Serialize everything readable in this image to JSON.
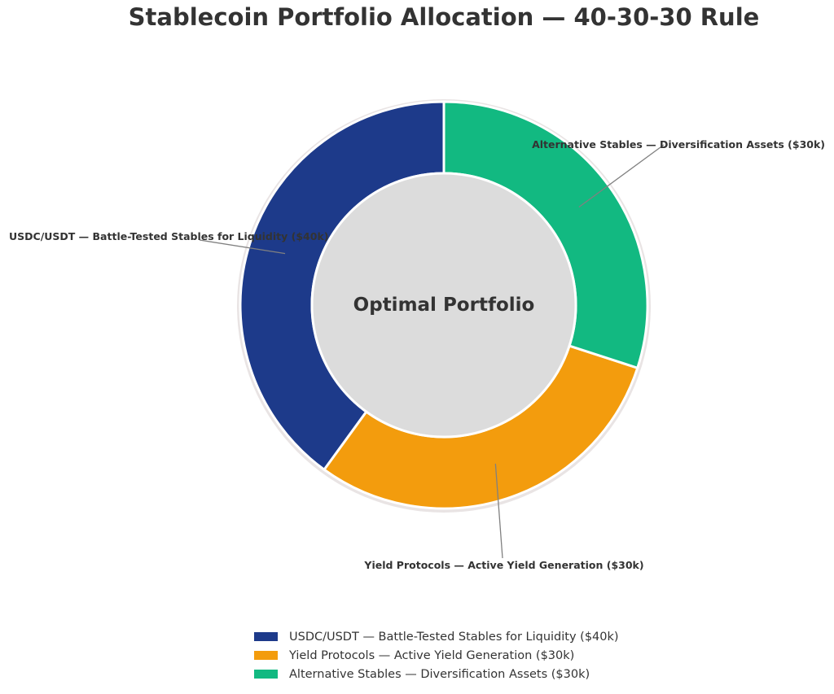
{
  "chart_data": {
    "type": "pie",
    "variant": "donut",
    "title": "Stablecoin Portfolio Allocation — 40-30-30 Rule",
    "center_text": "Optimal Portfolio",
    "categories": [
      "USDC/USDT — Battle-Tested Stables for Liquidity ($40k)",
      "Yield Protocols — Active Yield Generation ($30k)",
      "Alternative Stables — Diversification Assets ($30k)"
    ],
    "values": [
      40,
      30,
      30
    ],
    "colors": [
      "#1d3a8a",
      "#f39c0d",
      "#12b981"
    ],
    "center_fill": "#dcdcdc",
    "legend_position": "bottom-center"
  }
}
